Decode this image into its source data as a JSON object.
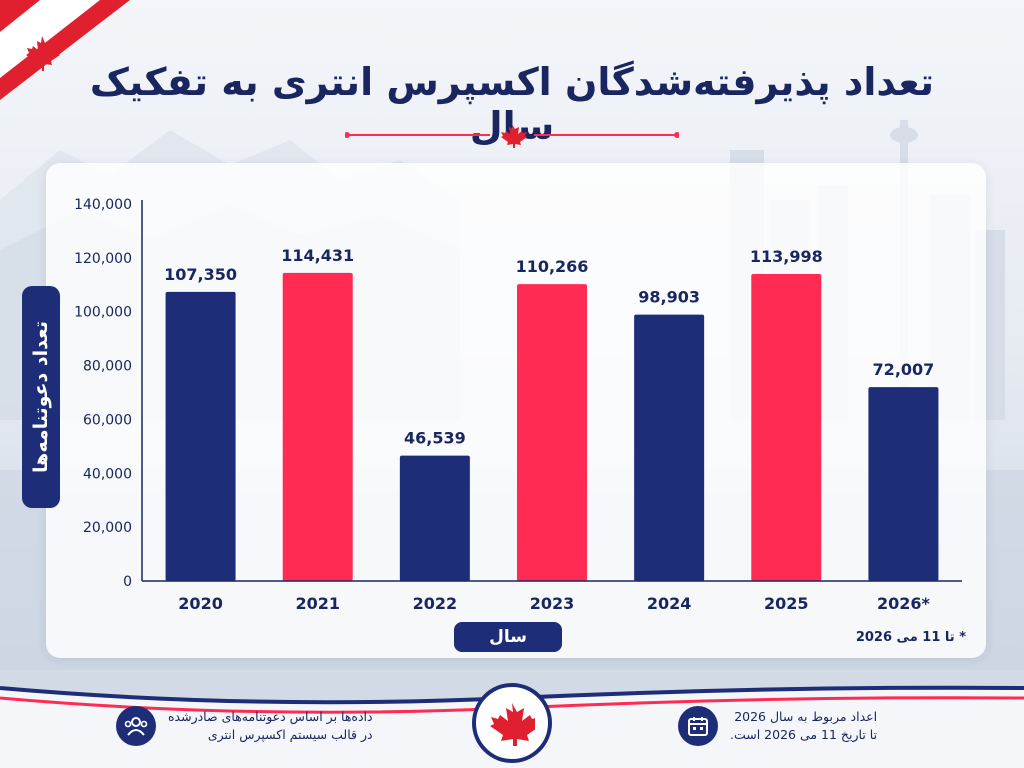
{
  "header": {
    "title": "تعداد پذیرفته‌شدگان اکسپرس انتری به تفکیک سال"
  },
  "chart_data": {
    "type": "bar",
    "categories": [
      "2020",
      "2021",
      "2022",
      "2023",
      "2024",
      "2025",
      "2026*"
    ],
    "values": [
      107350,
      114431,
      46539,
      110266,
      98903,
      113998,
      72007
    ],
    "value_labels": [
      "107,350",
      "114,431",
      "46,539",
      "110,266",
      "98,903",
      "113,998",
      "72,007"
    ],
    "bar_colors": [
      "#1d2d78",
      "#ff2b52",
      "#1d2d78",
      "#ff2b52",
      "#1d2d78",
      "#ff2b52",
      "#1d2d78"
    ],
    "title": "تعداد پذیرفته‌شدگان اکسپرس انتری به تفکیک سال",
    "xlabel": "سال",
    "ylabel": "تعداد دعوتنامه‌ها",
    "ylim": [
      0,
      140000
    ],
    "yticks": [
      0,
      20000,
      40000,
      60000,
      80000,
      100000,
      120000,
      140000
    ],
    "ytick_labels": [
      "0",
      "20,000",
      "40,000",
      "60,000",
      "80,000",
      "100,000",
      "120,000",
      "140,000"
    ],
    "grid": false,
    "footnote": "* تا 11 می 2026"
  },
  "footer": {
    "left_line1": "داده‌ها بر اساس دعوتنامه‌های صادرشده",
    "left_line2": "در قالب سیستم اکسپرس انتری",
    "right_line1": "اعداد مربوط به سال 2026",
    "right_line2": "تا تاریخ 11 می 2026 است."
  },
  "colors": {
    "navy": "#1d2d78",
    "red": "#ff2b52",
    "title": "#1a2660"
  },
  "icons": [
    "canada-flag-icon",
    "maple-leaf-icon",
    "users-icon",
    "calendar-icon"
  ]
}
